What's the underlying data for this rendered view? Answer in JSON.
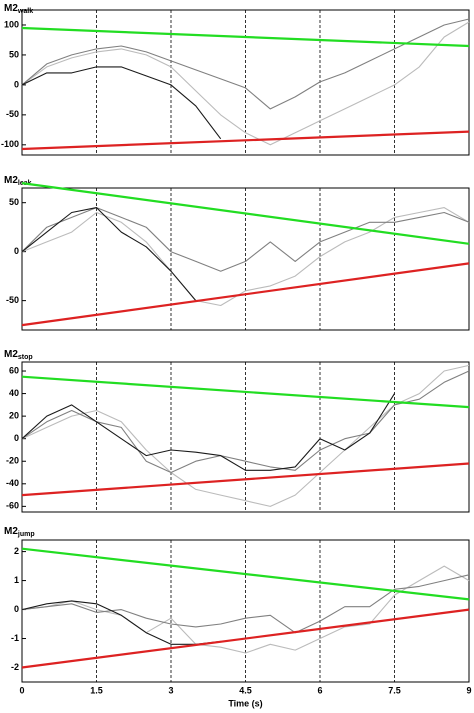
{
  "chart_data": [
    {
      "type": "line",
      "title": "M2",
      "title_sub": "walk",
      "x": [
        0,
        0.5,
        1,
        1.5,
        2,
        2.5,
        3,
        3.5,
        4,
        4.5,
        5,
        5.5,
        6,
        6.5,
        7,
        7.5,
        8,
        8.5,
        9
      ],
      "xlim": [
        0,
        9
      ],
      "xticks": [
        0,
        1.5,
        3,
        4.5,
        6,
        7.5,
        9
      ],
      "ylim": [
        -117,
        125
      ],
      "yticks": [
        -100,
        -50,
        0,
        50,
        100
      ],
      "series": [
        {
          "color": "#bbbbbb",
          "values": [
            0,
            30,
            45,
            55,
            60,
            50,
            30,
            -10,
            -50,
            -80,
            -100,
            -80,
            -60,
            -40,
            -20,
            0,
            30,
            80,
            105
          ]
        },
        {
          "color": "#808080",
          "values": [
            0,
            35,
            50,
            60,
            65,
            55,
            40,
            25,
            10,
            -5,
            -40,
            -20,
            5,
            20,
            40,
            60,
            80,
            100,
            110
          ]
        },
        {
          "color": "#1a1a1a",
          "values": [
            0,
            20,
            20,
            30,
            30,
            15,
            0,
            -35,
            -90,
            null,
            null,
            null,
            null,
            null,
            null,
            null,
            null,
            null,
            null
          ]
        }
      ],
      "lines": [
        {
          "color": "#22dd22",
          "x": [
            0,
            9
          ],
          "values": [
            95,
            65
          ]
        },
        {
          "color": "#dd2222",
          "x": [
            0,
            9
          ],
          "values": [
            -107,
            -78
          ]
        }
      ]
    },
    {
      "type": "line",
      "title": "M2",
      "title_sub": "leak",
      "x": [
        0,
        0.5,
        1,
        1.5,
        2,
        2.5,
        3,
        3.5,
        4,
        4.5,
        5,
        5.5,
        6,
        6.5,
        7,
        7.5,
        8,
        8.5,
        9
      ],
      "xlim": [
        0,
        9
      ],
      "xticks": [
        0,
        1.5,
        3,
        4.5,
        6,
        7.5,
        9
      ],
      "ylim": [
        -80,
        65
      ],
      "yticks": [
        -50,
        0,
        50
      ],
      "series": [
        {
          "color": "#bbbbbb",
          "values": [
            0,
            10,
            20,
            40,
            30,
            10,
            -20,
            -50,
            -55,
            -40,
            -35,
            -25,
            -5,
            10,
            20,
            35,
            40,
            45,
            30
          ]
        },
        {
          "color": "#808080",
          "values": [
            0,
            25,
            35,
            45,
            35,
            25,
            0,
            -10,
            -20,
            -10,
            10,
            -10,
            10,
            20,
            30,
            30,
            35,
            40,
            30
          ]
        },
        {
          "color": "#1a1a1a",
          "values": [
            0,
            20,
            40,
            45,
            20,
            5,
            -20,
            -50,
            null,
            null,
            null,
            null,
            null,
            null,
            null,
            null,
            null,
            null,
            null
          ]
        }
      ],
      "lines": [
        {
          "color": "#22dd22",
          "x": [
            0,
            9
          ],
          "values": [
            70,
            8
          ]
        },
        {
          "color": "#dd2222",
          "x": [
            0,
            9
          ],
          "values": [
            -75,
            -12
          ]
        }
      ]
    },
    {
      "type": "line",
      "title": "M2",
      "title_sub": "stop",
      "x": [
        0,
        0.5,
        1,
        1.5,
        2,
        2.5,
        3,
        3.5,
        4,
        4.5,
        5,
        5.5,
        6,
        6.5,
        7,
        7.5,
        8,
        8.5,
        9
      ],
      "xlim": [
        0,
        9
      ],
      "xticks": [
        0,
        1.5,
        3,
        4.5,
        6,
        7.5,
        9
      ],
      "ylim": [
        -65,
        68
      ],
      "yticks": [
        -60,
        -40,
        -20,
        0,
        20,
        40,
        60
      ],
      "series": [
        {
          "color": "#bbbbbb",
          "values": [
            0,
            10,
            20,
            25,
            15,
            -10,
            -30,
            -45,
            -50,
            -55,
            -60,
            -50,
            -30,
            -10,
            10,
            30,
            40,
            60,
            65
          ]
        },
        {
          "color": "#808080",
          "values": [
            0,
            15,
            25,
            15,
            10,
            -20,
            -30,
            -20,
            -15,
            -20,
            -25,
            -28,
            -10,
            0,
            5,
            30,
            35,
            50,
            60
          ]
        },
        {
          "color": "#1a1a1a",
          "values": [
            0,
            20,
            30,
            15,
            0,
            -15,
            -10,
            -12,
            -15,
            -28,
            -28,
            -25,
            0,
            -10,
            5,
            40,
            null,
            null,
            null
          ]
        }
      ],
      "lines": [
        {
          "color": "#22dd22",
          "x": [
            0,
            9
          ],
          "values": [
            55,
            28
          ]
        },
        {
          "color": "#dd2222",
          "x": [
            0,
            9
          ],
          "values": [
            -50,
            -22
          ]
        }
      ]
    },
    {
      "type": "line",
      "title": "M2",
      "title_sub": "jump",
      "xlabel": "Time (s)",
      "x": [
        0,
        0.5,
        1,
        1.5,
        2,
        2.5,
        3,
        3.5,
        4,
        4.5,
        5,
        5.5,
        6,
        6.5,
        7,
        7.5,
        8,
        8.5,
        9
      ],
      "xlim": [
        0,
        9
      ],
      "xticks": [
        0,
        1.5,
        3,
        4.5,
        6,
        7.5,
        9
      ],
      "ylim": [
        -2.5,
        2.4
      ],
      "yticks": [
        -2,
        -1,
        0,
        1,
        2
      ],
      "series": [
        {
          "color": "#bbbbbb",
          "values": [
            0,
            0.1,
            0.3,
            0,
            -0.2,
            -0.8,
            -0.3,
            -1.2,
            -1.3,
            -1.5,
            -1.2,
            -1.4,
            -1.0,
            -0.6,
            -0.5,
            0.5,
            1.0,
            1.5,
            1.0
          ]
        },
        {
          "color": "#808080",
          "values": [
            0,
            0.1,
            0.2,
            -0.1,
            0,
            -0.3,
            -0.5,
            -0.6,
            -0.5,
            -0.3,
            -0.2,
            -0.8,
            -0.4,
            0.1,
            0.1,
            0.7,
            0.8,
            1.0,
            1.2
          ]
        },
        {
          "color": "#1a1a1a",
          "values": [
            0,
            0.2,
            0.3,
            0.2,
            -0.2,
            -0.8,
            -1.2,
            -1.2,
            -1.1,
            null,
            null,
            null,
            null,
            null,
            null,
            null,
            null,
            null,
            null
          ]
        }
      ],
      "lines": [
        {
          "color": "#22dd22",
          "x": [
            0,
            9
          ],
          "values": [
            2.1,
            0.35
          ]
        },
        {
          "color": "#dd2222",
          "x": [
            0,
            9
          ],
          "values": [
            -2,
            0
          ]
        }
      ]
    }
  ]
}
